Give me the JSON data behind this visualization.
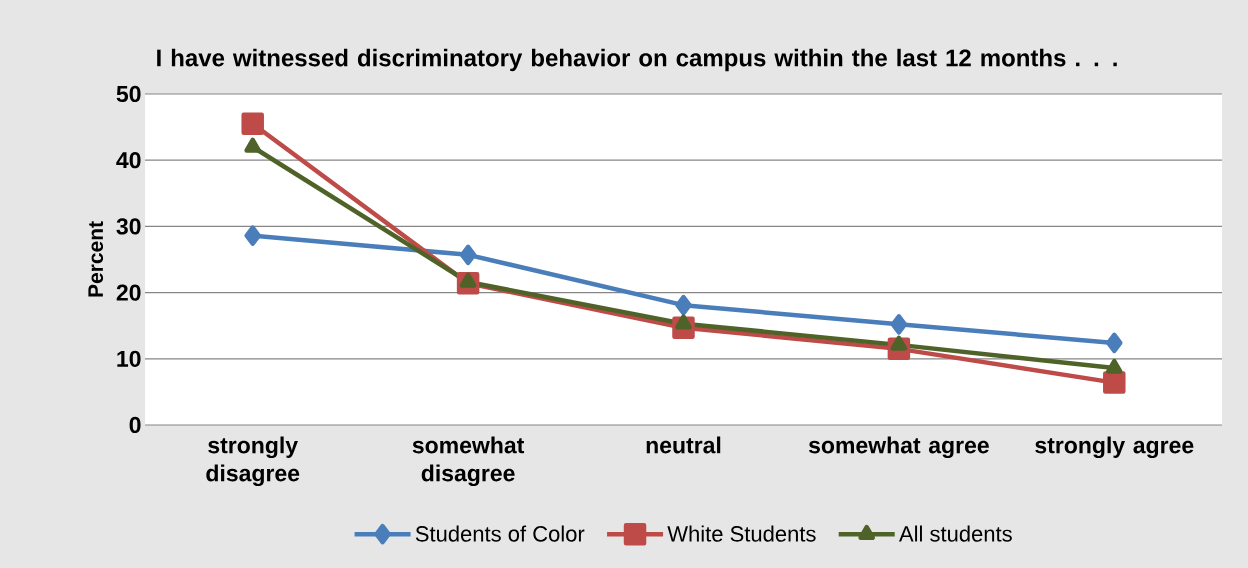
{
  "chart_data": {
    "type": "line",
    "title": "I have witnessed discriminatory behavior on campus within the last 12 months . . .",
    "ylabel": "Percent",
    "categories": [
      "strongly disagree",
      "somewhat disagree",
      "neutral",
      "somewhat agree",
      "strongly agree"
    ],
    "series": [
      {
        "name": "Students of Color",
        "color": "#4a7ebb",
        "marker": "diamond",
        "values": [
          28.6,
          25.7,
          18.1,
          15.2,
          12.4
        ]
      },
      {
        "name": "White Students",
        "color": "#be4b48",
        "marker": "square",
        "values": [
          45.5,
          21.4,
          14.7,
          11.5,
          6.4
        ]
      },
      {
        "name": "All students",
        "color": "#4f6228",
        "marker": "triangle",
        "values": [
          42.0,
          21.6,
          15.3,
          12.1,
          8.6
        ]
      }
    ],
    "ylim": [
      0,
      50
    ],
    "yticks": [
      0,
      10,
      20,
      30,
      40,
      50
    ],
    "grid": "y",
    "legend": "bottom",
    "line_style": "solid"
  }
}
